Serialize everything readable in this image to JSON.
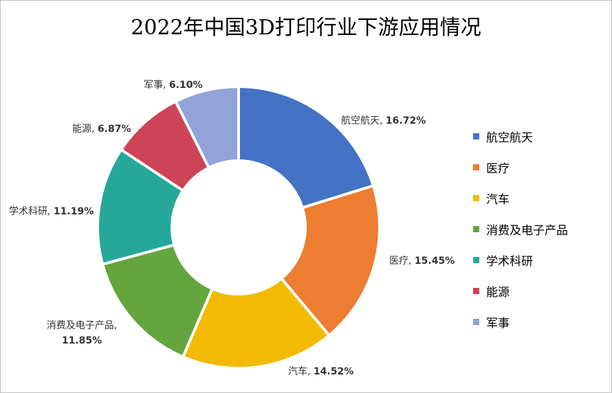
{
  "chart_data": {
    "type": "pie",
    "variant": "donut",
    "title": "2022年中国3D打印行业下游应用情况",
    "legend_position": "right",
    "slices": [
      {
        "label": "航空航天",
        "value": 16.72,
        "display": "16.72%",
        "color": "#4472C4"
      },
      {
        "label": "医疗",
        "value": 15.45,
        "display": "15.45%",
        "color": "#ED7D31"
      },
      {
        "label": "汽车",
        "value": 14.52,
        "display": "14.52%",
        "color": "#F2BA02"
      },
      {
        "label": "消费及电子产品",
        "value": 11.85,
        "display": "11.85%",
        "color": "#65A53D"
      },
      {
        "label": "学术科研",
        "value": 11.19,
        "display": "11.19%",
        "color": "#25A89A"
      },
      {
        "label": "能源",
        "value": 6.87,
        "display": "6.87%",
        "color": "#CC4456"
      },
      {
        "label": "军事",
        "value": 6.1,
        "display": "6.10%",
        "color": "#92A3DA"
      }
    ]
  }
}
